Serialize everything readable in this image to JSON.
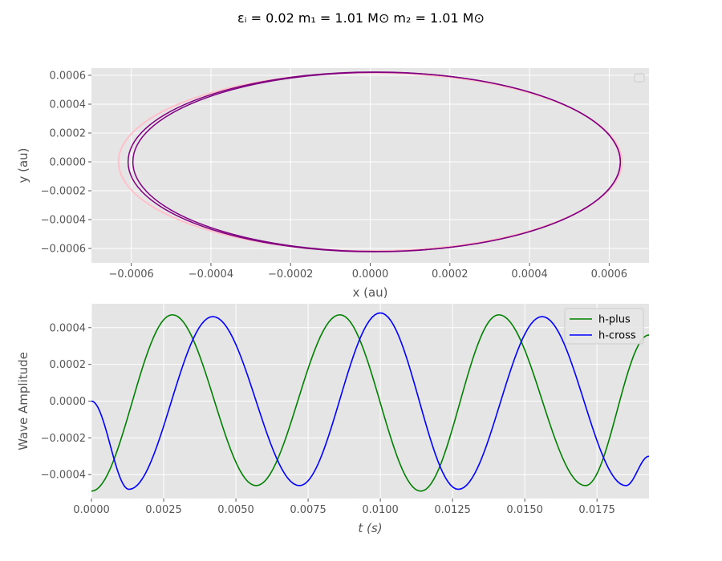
{
  "figure": {
    "suptitle": "εᵢ = 0.02 m₁ = 1.01 M⊙ m₂ = 1.01 M⊙"
  },
  "chart_data": [
    {
      "type": "line",
      "title": "",
      "xlabel": "x (au)",
      "ylabel": "y (au)",
      "xlim": [
        -0.0007,
        0.0007
      ],
      "ylim": [
        -0.0007,
        0.00065
      ],
      "x_ticks": [
        -0.0006,
        -0.0004,
        -0.0002,
        0.0,
        0.0002,
        0.0004,
        0.0006
      ],
      "x_tick_labels": [
        "−0.0006",
        "−0.0004",
        "−0.0002",
        "0.0000",
        "0.0002",
        "0.0004",
        "0.0006"
      ],
      "y_ticks": [
        -0.0006,
        -0.0004,
        -0.0002,
        0.0,
        0.0002,
        0.0004,
        0.0006
      ],
      "y_tick_labels": [
        "−0.0006",
        "−0.0004",
        "−0.0002",
        "0.0000",
        "0.0002",
        "0.0004",
        "0.0006"
      ],
      "grid": true,
      "legend": {
        "placement": "top-right",
        "entries": []
      },
      "series": [
        {
          "color": "#ffc0cb",
          "ellipse": {
            "cx": 0.0,
            "cy": 0.0,
            "a": 0.000632,
            "b": 0.000618
          }
        },
        {
          "color": "#800080",
          "ellipse": {
            "cx": 1e-05,
            "cy": 0.0,
            "a": 0.000618,
            "b": 0.000623
          }
        },
        {
          "color": "#800080",
          "ellipse": {
            "cx": 1.6e-05,
            "cy": 0.0,
            "a": 0.000612,
            "b": 0.000621
          }
        }
      ]
    },
    {
      "type": "line",
      "title": "",
      "xlabel": "t (s)",
      "ylabel": "Wave Amplitude",
      "xlim": [
        0.0,
        0.0193
      ],
      "ylim": [
        -0.00053,
        0.00053
      ],
      "x_ticks": [
        0.0,
        0.0025,
        0.005,
        0.0075,
        0.01,
        0.0125,
        0.015,
        0.0175
      ],
      "x_tick_labels": [
        "0.0000",
        "0.0025",
        "0.0050",
        "0.0075",
        "0.0100",
        "0.0125",
        "0.0150",
        "0.0175"
      ],
      "y_ticks": [
        -0.0004,
        -0.0002,
        0.0,
        0.0002,
        0.0004
      ],
      "y_tick_labels": [
        "−0.0004",
        "−0.0002",
        "0.0000",
        "0.0002",
        "0.0004"
      ],
      "grid": true,
      "legend": {
        "placement": "top-right"
      },
      "series": [
        {
          "name": "h-plus",
          "color": "#008000",
          "points": [
            [
              0.0,
              -0.00049
            ],
            [
              0.0028,
              0.00047
            ],
            [
              0.0057,
              -0.00046
            ],
            [
              0.0086,
              0.00047
            ],
            [
              0.0114,
              -0.00049
            ],
            [
              0.0141,
              0.00047
            ],
            [
              0.0171,
              -0.00046
            ],
            [
              0.0193,
              0.00036
            ]
          ]
        },
        {
          "name": "h-cross",
          "color": "#0000ff",
          "points": [
            [
              0.0,
              0.0
            ],
            [
              0.0013,
              -0.00048
            ],
            [
              0.0042,
              0.00046
            ],
            [
              0.0072,
              -0.00046
            ],
            [
              0.01,
              0.00048
            ],
            [
              0.0127,
              -0.00048
            ],
            [
              0.0156,
              0.00046
            ],
            [
              0.0185,
              -0.00046
            ],
            [
              0.0193,
              -0.0003
            ]
          ]
        }
      ]
    }
  ]
}
